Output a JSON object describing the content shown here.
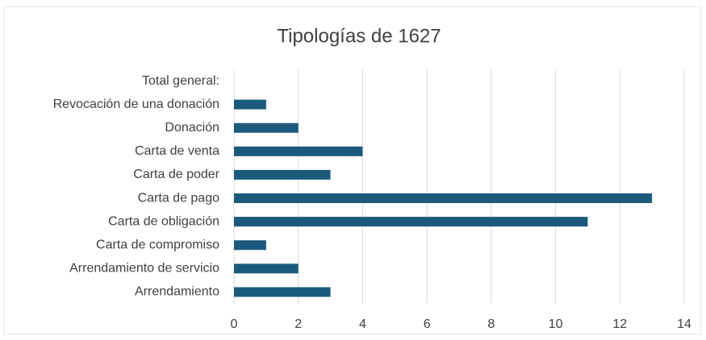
{
  "chart_data": {
    "type": "bar",
    "orientation": "horizontal",
    "title": "Tipologías de 1627",
    "categories": [
      "Total general:",
      "Revocación de una donación",
      "Donación",
      "Carta de venta",
      "Carta de poder",
      "Carta de pago",
      "Carta de obligación",
      "Carta de compromiso",
      "Arrendamiento de servicio",
      "Arrendamiento"
    ],
    "values": [
      null,
      1,
      2,
      4,
      3,
      13,
      11,
      1,
      2,
      3
    ],
    "color": "#1b5a7c",
    "xlim": [
      0,
      14
    ],
    "xticks": [
      0,
      2,
      4,
      6,
      8,
      10,
      12,
      14
    ],
    "grid": true
  }
}
